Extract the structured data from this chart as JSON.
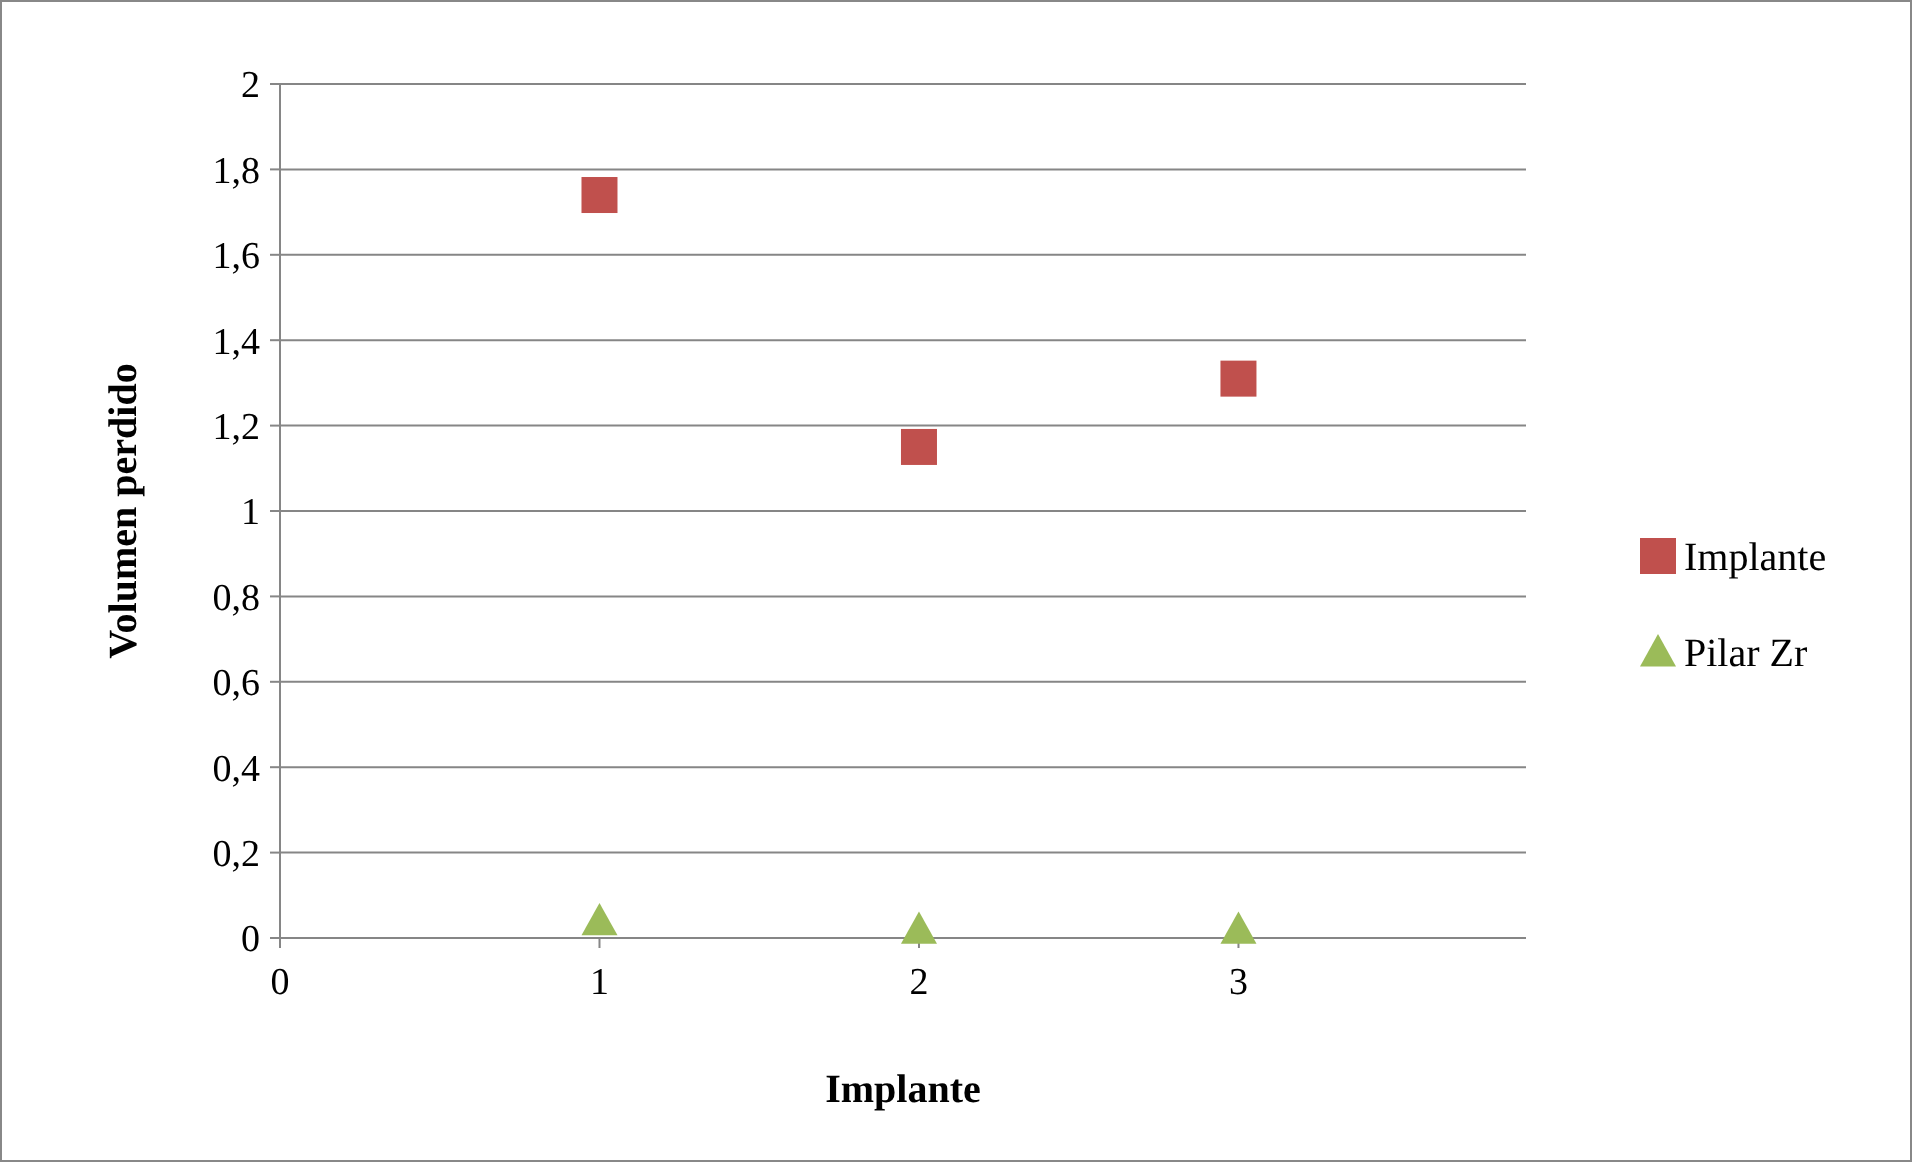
{
  "chart_data": {
    "type": "scatter",
    "xlabel": "Implante",
    "ylabel": "Volumen perdido",
    "x": [
      1,
      2,
      3
    ],
    "series": [
      {
        "name": "Implante",
        "color": "#c0504d",
        "marker": "square",
        "values": [
          1.74,
          1.15,
          1.31
        ]
      },
      {
        "name": "Pilar Zr",
        "color": "#9bbb59",
        "marker": "triangle",
        "values": [
          0.04,
          0.02,
          0.02
        ]
      }
    ],
    "xlim": [
      0,
      3.9
    ],
    "xticks": [
      0,
      1,
      2,
      3
    ],
    "ylim": [
      0,
      2
    ],
    "yticks": [
      0,
      {
        "value": 0.2,
        "label": "0,2"
      },
      {
        "value": 0.4,
        "label": "0,4"
      },
      {
        "value": 0.6,
        "label": "0,6"
      },
      {
        "value": 0.8,
        "label": "0,8"
      },
      1,
      {
        "value": 1.2,
        "label": "1,2"
      },
      {
        "value": 1.4,
        "label": "1,4"
      },
      {
        "value": 1.6,
        "label": "1,6"
      },
      {
        "value": 1.8,
        "label": "1,8"
      },
      2
    ],
    "grid": "y",
    "legend": "right"
  }
}
